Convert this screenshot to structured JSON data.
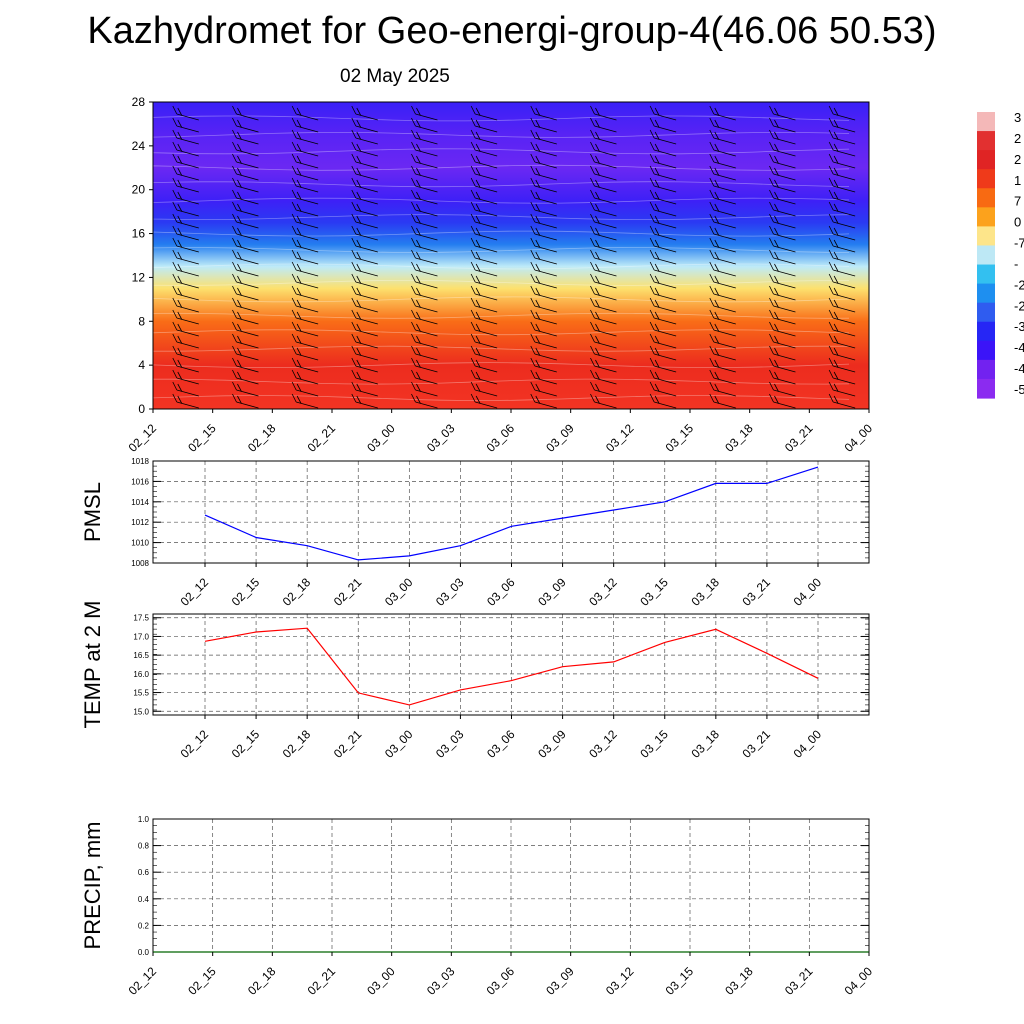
{
  "header": {
    "title": "Kazhydromet for Geo-energi-group-4(46.06 50.53)",
    "subtitle": "02 May 2025"
  },
  "colors": {
    "pmsl_line": "#0000ff",
    "temp_line": "#ff0000",
    "precip_line": "#006400",
    "grid": "#555555"
  },
  "colorbar": {
    "labels": [
      "3",
      "2",
      "2",
      "1",
      "7",
      "0",
      "-7",
      "-",
      "-2",
      "-2",
      "-3",
      "-4",
      "-4",
      "-5"
    ],
    "colors": [
      "#f4b8b8",
      "#e23030",
      "#e02424",
      "#ef3a1a",
      "#f86a12",
      "#fca21c",
      "#fde58a",
      "#bde8f5",
      "#33c0f0",
      "#1e8ff0",
      "#2f5cf0",
      "#2626f5",
      "#3b14f8",
      "#7222f0",
      "#8b2bf0"
    ]
  },
  "chart_data": [
    {
      "id": "cross-section",
      "type": "heatmap",
      "title": "",
      "xlabel": "",
      "ylabel": "",
      "categories": [
        "02_12",
        "02_15",
        "02_18",
        "02_21",
        "03_00",
        "03_03",
        "03_06",
        "03_09",
        "03_12",
        "03_15",
        "03_18",
        "03_21",
        "04_00"
      ],
      "yticks": [
        0,
        4,
        8,
        12,
        16,
        20,
        24,
        28
      ],
      "ylim": [
        0,
        28
      ],
      "fill_profile": [
        {
          "level": 0,
          "value": 27
        },
        {
          "level": 4,
          "value": 24
        },
        {
          "level": 8,
          "value": 14
        },
        {
          "level": 11,
          "value": 2
        },
        {
          "level": 13,
          "value": -8
        },
        {
          "level": 15,
          "value": -25
        },
        {
          "level": 17,
          "value": -38
        },
        {
          "level": 19,
          "value": -48
        },
        {
          "level": 22,
          "value": -54
        },
        {
          "level": 25,
          "value": -52
        },
        {
          "level": 28,
          "value": -47
        }
      ],
      "wind_barbs": true
    },
    {
      "id": "pmsl",
      "type": "line",
      "title": "",
      "xlabel": "",
      "ylabel": "PMSL",
      "x": [
        "02_12",
        "02_15",
        "02_18",
        "02_21",
        "03_00",
        "03_03",
        "03_06",
        "03_09",
        "03_12",
        "03_15",
        "03_18",
        "03_21",
        "04_00"
      ],
      "series": [
        {
          "values": [
            1012.7,
            1010.5,
            1009.7,
            1008.3,
            1008.7,
            1009.7,
            1011.6,
            1012.4,
            1013.2,
            1014.0,
            1015.8,
            1015.8,
            1017.4
          ]
        }
      ],
      "yticks": [
        1008,
        1010,
        1012,
        1014,
        1016,
        1018
      ],
      "ylim": [
        1008,
        1018
      ],
      "grid": true
    },
    {
      "id": "temp",
      "type": "line",
      "title": "",
      "xlabel": "",
      "ylabel": "TEMP at 2 M",
      "x": [
        "02_12",
        "02_15",
        "02_18",
        "02_21",
        "03_00",
        "03_03",
        "03_06",
        "03_09",
        "03_12",
        "03_15",
        "03_18",
        "03_21",
        "04_00"
      ],
      "series": [
        {
          "values": [
            16.87,
            17.12,
            17.22,
            15.49,
            15.17,
            15.57,
            15.82,
            16.19,
            16.32,
            16.84,
            17.19,
            16.55,
            15.88
          ]
        }
      ],
      "yticks": [
        "15.0",
        "15.5",
        "16.0",
        "16.5",
        "17.0",
        "17.5"
      ],
      "ylim": [
        14.9,
        17.6
      ],
      "grid": true
    },
    {
      "id": "precip",
      "type": "line",
      "title": "",
      "xlabel": "",
      "ylabel": "PRECIP, mm",
      "x": [
        "02_12",
        "02_15",
        "02_18",
        "02_21",
        "03_00",
        "03_03",
        "03_06",
        "03_09",
        "03_12",
        "03_15",
        "03_18",
        "03_21",
        "04_00"
      ],
      "series": [
        {
          "values": [
            0,
            0,
            0,
            0,
            0,
            0,
            0,
            0,
            0,
            0,
            0,
            0,
            0
          ]
        }
      ],
      "yticks": [
        "0.0",
        "0.2",
        "0.4",
        "0.6",
        "0.8",
        "1.0"
      ],
      "ylim": [
        0,
        1
      ],
      "grid": true
    }
  ]
}
